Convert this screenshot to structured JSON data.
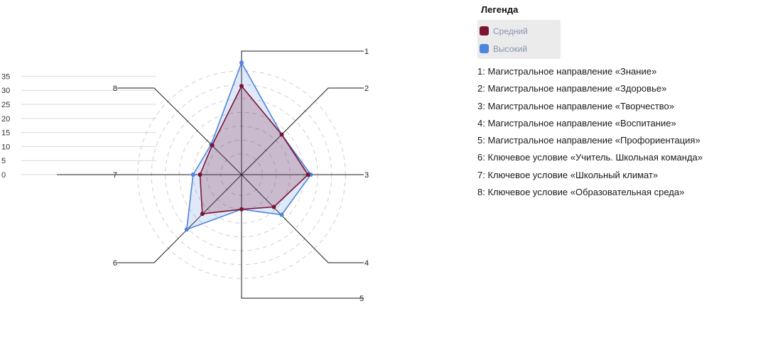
{
  "legend": {
    "title": "Легенда",
    "series": [
      {
        "name": "Средний",
        "color": "#7b1433"
      },
      {
        "name": "Высокий",
        "color": "#4d84de"
      }
    ],
    "axes": [
      "1: Магистральное направление «Знание»",
      "2: Магистральное направление «Здоровье»",
      "3: Магистральное направление «Творчество»",
      "4: Магистральное направление «Воспитание»",
      "5: Магистральное направление «Профориентация»",
      "6: Ключевое условие «Учитель. Школьная команда»",
      "7: Ключевое условие «Школьный климат»",
      "8: Ключевое условие «Образовательная среда»"
    ]
  },
  "chart_data": {
    "type": "radar",
    "axes": [
      "1",
      "2",
      "3",
      "4",
      "5",
      "6",
      "7",
      "8"
    ],
    "scale_ticks": [
      0,
      5,
      10,
      15,
      20,
      25,
      30,
      35
    ],
    "range": [
      0,
      40
    ],
    "grid": "dashed concentric circles",
    "series": [
      {
        "name": "Средний",
        "color": "#7b1433",
        "values": [
          32,
          20.5,
          24,
          16.5,
          12.5,
          20,
          15,
          15
        ]
      },
      {
        "name": "Высокий",
        "color": "#4d84de",
        "values": [
          40.5,
          20.5,
          25,
          20.5,
          12.5,
          28,
          17.5,
          15.5
        ]
      }
    ]
  }
}
